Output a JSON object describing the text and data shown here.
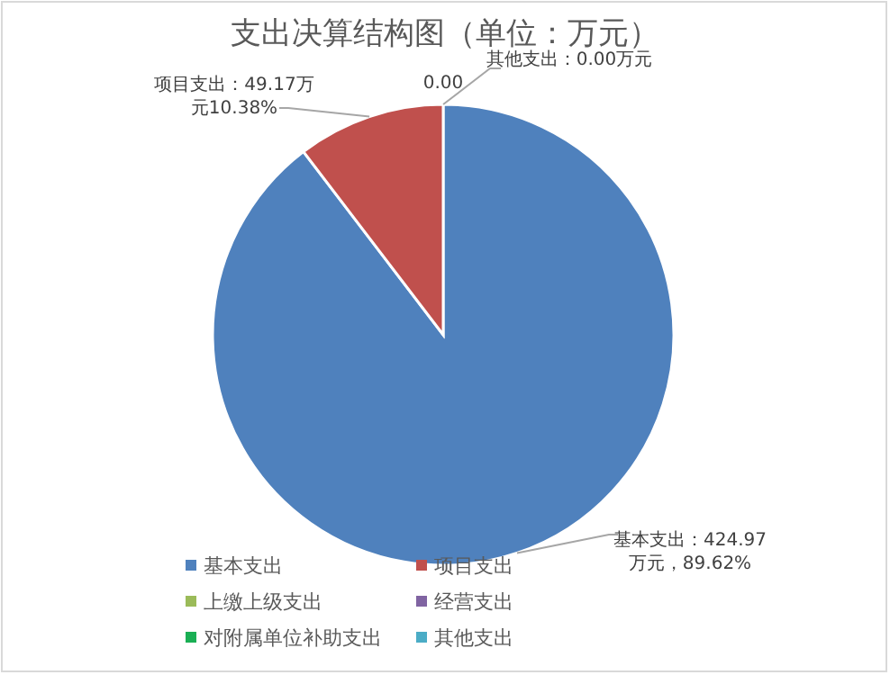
{
  "chart_data": {
    "type": "pie",
    "title": "支出决算结构图（单位：万元）",
    "categories": [
      "基本支出",
      "项目支出",
      "上缴上级支出",
      "经营支出",
      "对附属单位补助支出",
      "其他支出"
    ],
    "values": [
      424.97,
      49.17,
      0,
      0,
      0,
      0
    ],
    "colors": [
      "#4f81bd",
      "#c0504d",
      "#9bbb59",
      "#8064a2",
      "#1aaf54",
      "#4bacc6"
    ],
    "value_labels": [
      "基本支出：424.97万元，89.62%",
      "项目支出：49.17万元10.38%",
      "0.00",
      null,
      null,
      "其他支出：0.00万元"
    ],
    "legend": "bottom"
  }
}
